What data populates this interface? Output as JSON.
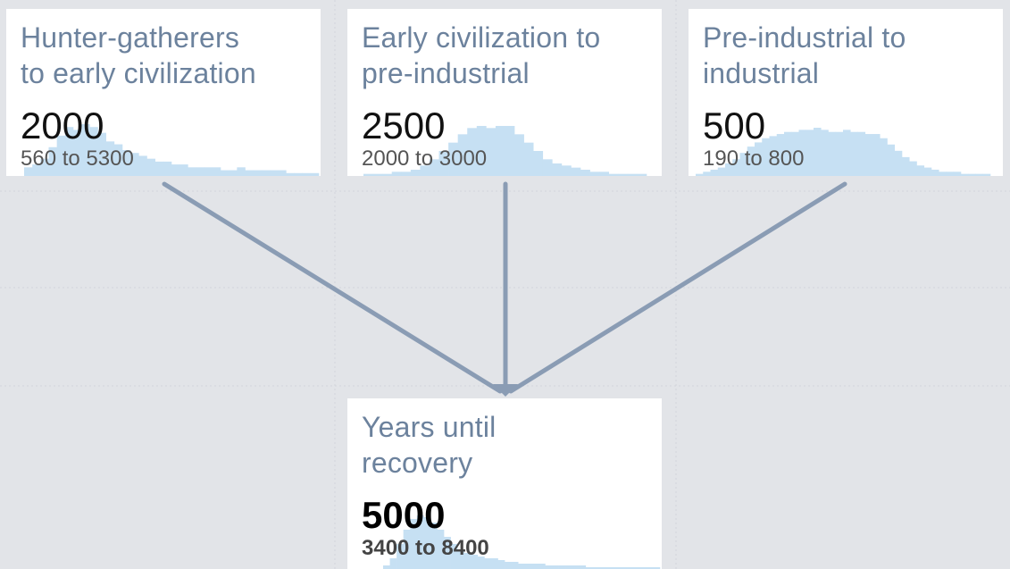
{
  "nodes": [
    {
      "id": "n1",
      "title": "Hunter-gatherers\nto early civilization",
      "median": "2000",
      "range": "560 to 5300",
      "histogram": [
        3,
        4,
        6,
        10,
        14,
        17,
        16,
        18,
        17,
        15,
        12,
        11,
        9,
        8,
        7,
        6,
        5,
        5,
        4,
        4,
        3,
        3,
        3,
        3,
        2,
        2,
        3,
        2,
        2,
        2,
        2,
        2,
        1,
        1,
        1,
        1
      ]
    },
    {
      "id": "n2",
      "title": "Early civilization to\npre-industrial",
      "median": "2500",
      "range": "2000 to 3000",
      "histogram": [
        1,
        1,
        1,
        2,
        2,
        3,
        5,
        8,
        12,
        16,
        20,
        23,
        24,
        23,
        24,
        24,
        20,
        16,
        12,
        8,
        6,
        5,
        4,
        3,
        2,
        2,
        1,
        1,
        1,
        1
      ]
    },
    {
      "id": "n3",
      "title": "Pre-industrial to\nindustrial",
      "median": "500",
      "range": "190 to 800",
      "histogram": [
        1,
        2,
        3,
        4,
        6,
        8,
        11,
        14,
        16,
        18,
        19,
        20,
        21,
        21,
        22,
        22,
        23,
        22,
        21,
        21,
        22,
        21,
        21,
        20,
        20,
        18,
        15,
        12,
        9,
        7,
        5,
        4,
        3,
        2,
        2,
        2,
        1,
        1,
        1,
        1
      ]
    },
    {
      "id": "n4",
      "title": "Years until\nrecovery",
      "median": "5000",
      "range": "3400 to 8400",
      "histogram": [
        2,
        6,
        14,
        22,
        28,
        30,
        29,
        26,
        22,
        18,
        14,
        11,
        9,
        8,
        7,
        6,
        6,
        5,
        4,
        4,
        3,
        3,
        3,
        3,
        2,
        2,
        2,
        2,
        2,
        2,
        1,
        1,
        1,
        1,
        1,
        1,
        1,
        1,
        1,
        1,
        1
      ]
    }
  ],
  "edges": [
    {
      "from": "n1",
      "to": "n4"
    },
    {
      "from": "n2",
      "to": "n4"
    },
    {
      "from": "n3",
      "to": "n4"
    }
  ],
  "colors": {
    "background": "#e2e4e8",
    "card": "#ffffff",
    "histogram": "#c6e0f3",
    "arrow": "#8a9cb4",
    "title": "#6c829d"
  }
}
